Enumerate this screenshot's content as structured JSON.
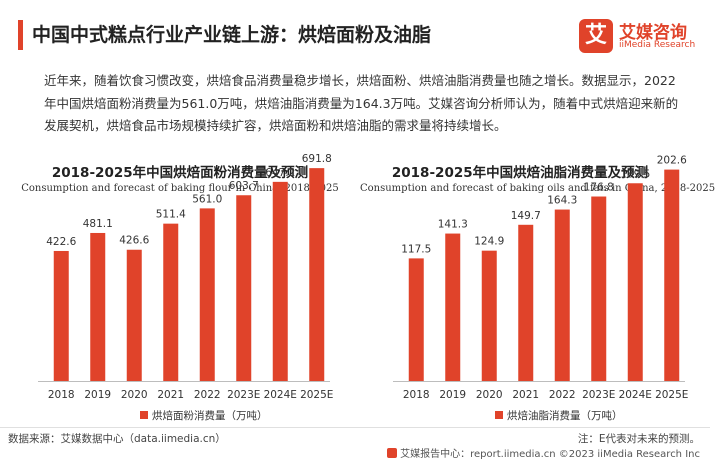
{
  "page": {
    "title": "中国中式糕点行业产业链上游：烘焙面粉及油脂",
    "intro": "近年来，随着饮食习惯改变，烘焙食品消费量稳步增长，烘焙面粉、烘焙油脂消费量也随之增长。数据显示，2022年中国烘焙面粉消费量为561.0万吨，烘焙油脂消费量为164.3万吨。艾媒咨询分析师认为，随着中式烘焙迎来新的发展契机，烘焙食品市场规模持续扩容，烘焙面粉和烘焙油脂的需求量将持续增长。",
    "source": "数据来源：艾媒数据中心（data.iimedia.cn）",
    "note": "注：E代表对未来的预测。",
    "footer": "艾媒报告中心：report.iimedia.cn ©2023  iiMedia Research  Inc"
  },
  "logo": {
    "mark": "艾",
    "name_cn": "艾媒咨询",
    "name_en": "iiMedia Research"
  },
  "colors": {
    "accent": "#e0432a",
    "bar": "#e0432a"
  },
  "chart_data": [
    {
      "type": "bar",
      "title": "2018-2025年中国烘焙面粉消费量及预测",
      "subtitle": "Consumption and forecast of baking flour in China, 2018-2025",
      "categories": [
        "2018",
        "2019",
        "2020",
        "2021",
        "2022",
        "2023E",
        "2024E",
        "2025E"
      ],
      "series": [
        {
          "name": "烘焙面粉消费量（万吨）",
          "values": [
            422.6,
            481.1,
            426.6,
            511.4,
            561.0,
            603.7,
            647.2,
            691.8
          ]
        }
      ],
      "ylim": [
        0,
        780
      ],
      "grid": false,
      "legend": "bottom"
    },
    {
      "type": "bar",
      "title": "2018-2025年中国烘焙油脂消费量及预测",
      "subtitle": "Consumption and forecast of baking oils and fats in China, 2018-2025",
      "categories": [
        "2018",
        "2019",
        "2020",
        "2021",
        "2022",
        "2023E",
        "2024E",
        "2025E"
      ],
      "series": [
        {
          "name": "烘焙油脂消费量（万吨）",
          "values": [
            117.5,
            141.3,
            124.9,
            149.7,
            164.3,
            176.8,
            189.5,
            202.6
          ]
        }
      ],
      "ylim": [
        0,
        230
      ],
      "grid": false,
      "legend": "bottom"
    }
  ]
}
